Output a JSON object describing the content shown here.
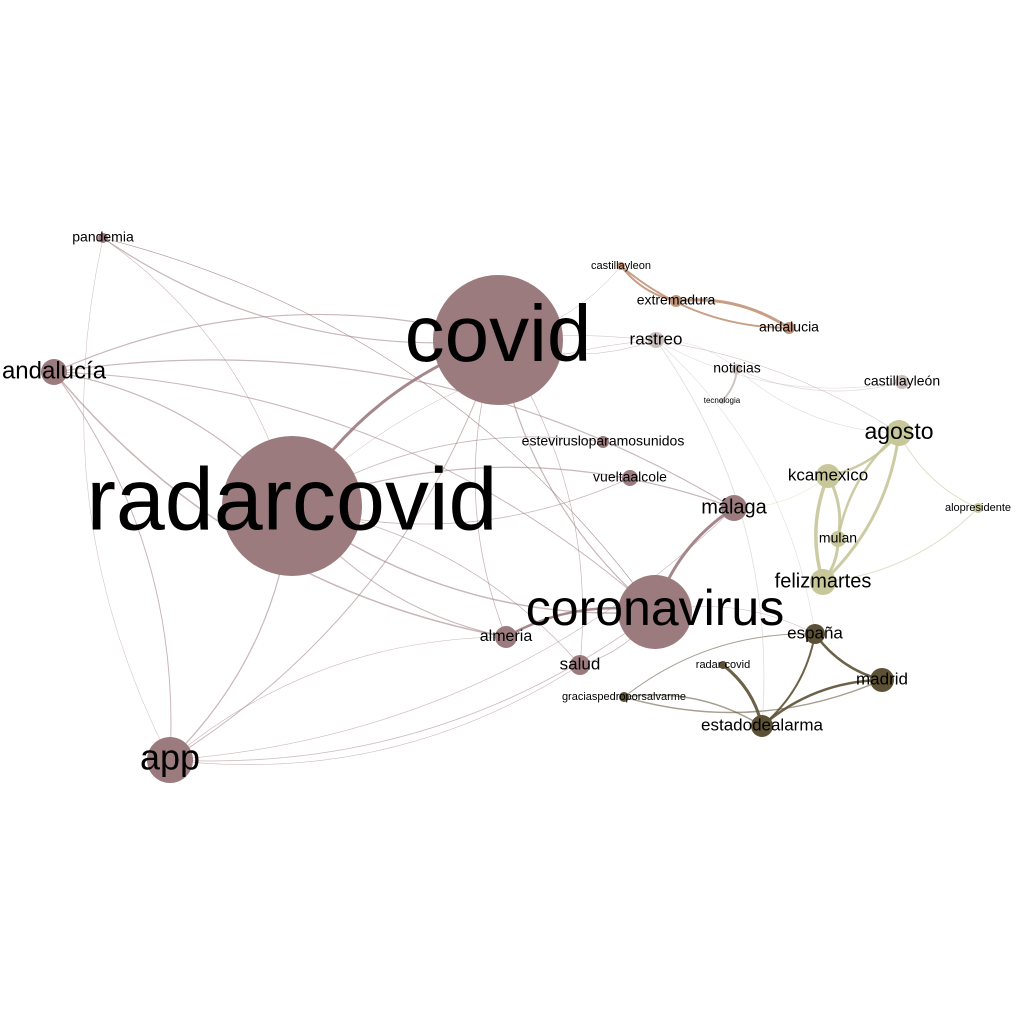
{
  "colors": {
    "mauve": "#9c7b7f",
    "copper": "#c29478",
    "olive": "#c7c79a",
    "darkolive": "#5c5035",
    "grey": "#c9bfbb",
    "background": "#ffffff"
  },
  "nodes": [
    {
      "id": "radarcovid",
      "label": "radarcovid",
      "group": "mauve"
    },
    {
      "id": "covid",
      "label": "covid",
      "group": "mauve"
    },
    {
      "id": "coronavirus",
      "label": "coronavirus",
      "group": "mauve"
    },
    {
      "id": "app",
      "label": "app",
      "group": "mauve"
    },
    {
      "id": "andalucia_es",
      "label": "andalucía",
      "group": "mauve"
    },
    {
      "id": "pandemia",
      "label": "pandemia",
      "group": "mauve"
    },
    {
      "id": "malaga",
      "label": "málaga",
      "group": "mauve"
    },
    {
      "id": "almeria",
      "label": "almeria",
      "group": "mauve"
    },
    {
      "id": "salud",
      "label": "salud",
      "group": "mauve"
    },
    {
      "id": "vueltaalcole",
      "label": "vueltaalcole",
      "group": "mauve"
    },
    {
      "id": "estevirus",
      "label": "estevirusloparamosunidos",
      "group": "mauve"
    },
    {
      "id": "rastreo",
      "label": "rastreo",
      "group": "grey"
    },
    {
      "id": "noticias",
      "label": "noticias",
      "group": "grey"
    },
    {
      "id": "tecnologia",
      "label": "tecnologia",
      "group": "grey"
    },
    {
      "id": "castillayleon_acc",
      "label": "castillayleón",
      "group": "grey"
    },
    {
      "id": "castillayleon",
      "label": "castillayleon",
      "group": "copper"
    },
    {
      "id": "extremadura",
      "label": "extremadura",
      "group": "copper"
    },
    {
      "id": "andalucia",
      "label": "andalucia",
      "group": "copper"
    },
    {
      "id": "agosto",
      "label": "agosto",
      "group": "olive"
    },
    {
      "id": "kcamexico",
      "label": "kcamexico",
      "group": "olive"
    },
    {
      "id": "mulan",
      "label": "mulan",
      "group": "olive"
    },
    {
      "id": "felizmartes",
      "label": "felizmartes",
      "group": "olive"
    },
    {
      "id": "alopresidente",
      "label": "alopresidente",
      "group": "olive"
    },
    {
      "id": "espana",
      "label": "españa",
      "group": "darkolive"
    },
    {
      "id": "madrid",
      "label": "madrid",
      "group": "darkolive"
    },
    {
      "id": "estadodealarma",
      "label": "estadodealarma",
      "group": "darkolive"
    },
    {
      "id": "radar_covid",
      "label": "radar covid",
      "group": "darkolive"
    },
    {
      "id": "graciaspedro",
      "label": "graciaspedroporsalvarme",
      "group": "darkolive"
    }
  ],
  "edges": [
    [
      "radarcovid",
      "covid",
      3
    ],
    [
      "radarcovid",
      "coronavirus",
      1.5
    ],
    [
      "radarcovid",
      "app",
      1.2
    ],
    [
      "radarcovid",
      "andalucia_es",
      1.2
    ],
    [
      "radarcovid",
      "malaga",
      1.2
    ],
    [
      "radarcovid",
      "almeria",
      1
    ],
    [
      "radarcovid",
      "salud",
      0.8
    ],
    [
      "radarcovid",
      "vueltaalcole",
      0.8
    ],
    [
      "radarcovid",
      "estevirus",
      0.8
    ],
    [
      "radarcovid",
      "pandemia",
      0.6
    ],
    [
      "radarcovid",
      "rastreo",
      0.5
    ],
    [
      "covid",
      "coronavirus",
      1.2
    ],
    [
      "covid",
      "app",
      1
    ],
    [
      "covid",
      "andalucia_es",
      1.2
    ],
    [
      "covid",
      "pandemia",
      1.2
    ],
    [
      "covid",
      "rastreo",
      0.5
    ],
    [
      "covid",
      "salud",
      0.7
    ],
    [
      "covid",
      "almeria",
      0.8
    ],
    [
      "covid",
      "agosto",
      0.4
    ],
    [
      "covid",
      "castillayleon",
      0.4
    ],
    [
      "coronavirus",
      "malaga",
      3
    ],
    [
      "coronavirus",
      "almeria",
      2.5
    ],
    [
      "coronavirus",
      "app",
      0.8
    ],
    [
      "coronavirus",
      "andalucia_es",
      1
    ],
    [
      "coronavirus",
      "salud",
      0.8
    ],
    [
      "coronavirus",
      "pandemia",
      0.6
    ],
    [
      "coronavirus",
      "espana",
      0.6
    ],
    [
      "app",
      "andalucia_es",
      1
    ],
    [
      "app",
      "pandemia",
      0.5
    ],
    [
      "app",
      "malaga",
      0.6
    ],
    [
      "app",
      "almeria",
      0.6
    ],
    [
      "app",
      "salud",
      0.6
    ],
    [
      "andalucia_es",
      "malaga",
      1.2
    ],
    [
      "andalucia_es",
      "almeria",
      1.5
    ],
    [
      "pandemia",
      "coronavirus",
      0.6
    ],
    [
      "castillayleon",
      "extremadura",
      2
    ],
    [
      "extremadura",
      "andalucia",
      3
    ],
    [
      "castillayleon",
      "andalucia",
      2
    ],
    [
      "rastreo",
      "noticias",
      0.6
    ],
    [
      "rastreo",
      "castillayleon_acc",
      0.6
    ],
    [
      "rastreo",
      "espana",
      0.6
    ],
    [
      "noticias",
      "castillayleon_acc",
      0.8
    ],
    [
      "noticias",
      "tecnologia",
      2
    ],
    [
      "noticias",
      "agosto",
      0.6
    ],
    [
      "agosto",
      "kcamexico",
      2.5
    ],
    [
      "agosto",
      "mulan",
      2.5
    ],
    [
      "agosto",
      "felizmartes",
      3
    ],
    [
      "agosto",
      "alopresidente",
      1
    ],
    [
      "kcamexico",
      "mulan",
      3
    ],
    [
      "kcamexico",
      "felizmartes",
      3.5
    ],
    [
      "mulan",
      "felizmartes",
      3
    ],
    [
      "felizmartes",
      "alopresidente",
      1
    ],
    [
      "kcamexico",
      "malaga",
      0.5
    ],
    [
      "espana",
      "madrid",
      2.5
    ],
    [
      "espana",
      "estadodealarma",
      2
    ],
    [
      "madrid",
      "estadodealarma",
      2.5
    ],
    [
      "madrid",
      "graciaspedro",
      1.5
    ],
    [
      "estadodealarma",
      "graciaspedro",
      1.5
    ],
    [
      "radar_covid",
      "estadodealarma",
      3
    ],
    [
      "espana",
      "graciaspedro",
      1
    ],
    [
      "rastreo",
      "estadodealarma",
      0.8
    ]
  ]
}
